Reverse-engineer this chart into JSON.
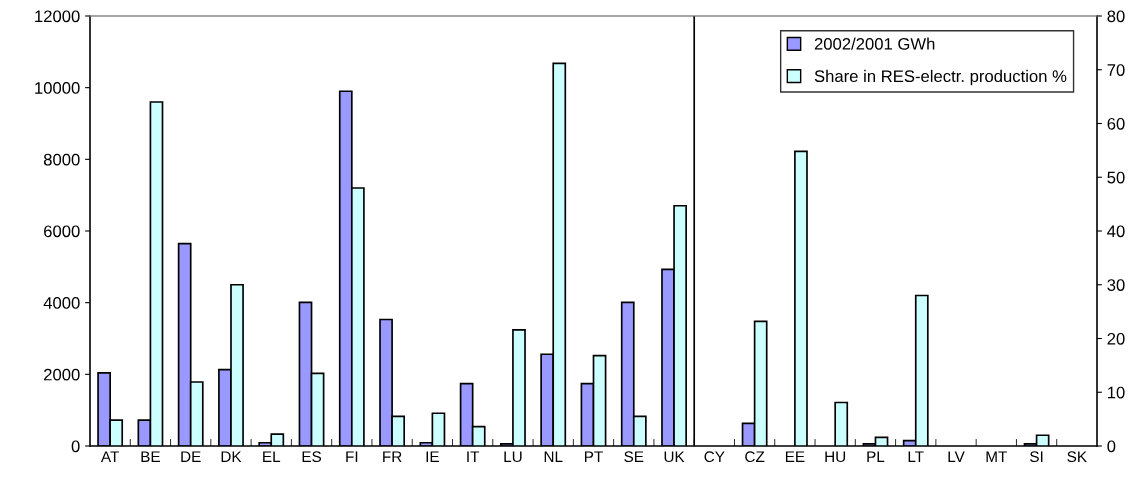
{
  "chart_data": {
    "type": "bar",
    "categories": [
      "AT",
      "BE",
      "DE",
      "DK",
      "EL",
      "ES",
      "FI",
      "FR",
      "IE",
      "IT",
      "LU",
      "NL",
      "PT",
      "SE",
      "UK",
      "CY",
      "CZ",
      "EE",
      "HU",
      "PL",
      "LT",
      "LV",
      "MT",
      "SI",
      "SK"
    ],
    "series": [
      {
        "name": "2002/2001 GWh",
        "color": "#9999ff",
        "values": [
          2040,
          720,
          5650,
          2130,
          90,
          4010,
          9900,
          3530,
          90,
          1740,
          60,
          2560,
          1740,
          4010,
          4930,
          null,
          630,
          null,
          null,
          60,
          150,
          null,
          null,
          60,
          null
        ]
      },
      {
        "name": "Share in RES-electr. production %",
        "color": "#ccffff",
        "axis": "y2",
        "values": [
          4.8,
          64.0,
          11.9,
          30.0,
          2.2,
          13.5,
          48.0,
          5.5,
          6.1,
          3.6,
          21.6,
          71.2,
          16.8,
          5.5,
          44.7,
          null,
          23.2,
          54.8,
          8.1,
          1.6,
          28.0,
          null,
          null,
          2.0,
          null
        ]
      }
    ],
    "ylim": [
      0,
      12000
    ],
    "yticks": [
      0,
      2000,
      4000,
      6000,
      8000,
      10000,
      12000
    ],
    "y2lim": [
      0,
      80
    ],
    "y2ticks": [
      0,
      10,
      20,
      30,
      40,
      50,
      60,
      70,
      80
    ],
    "grid": false,
    "legend": "top right"
  }
}
